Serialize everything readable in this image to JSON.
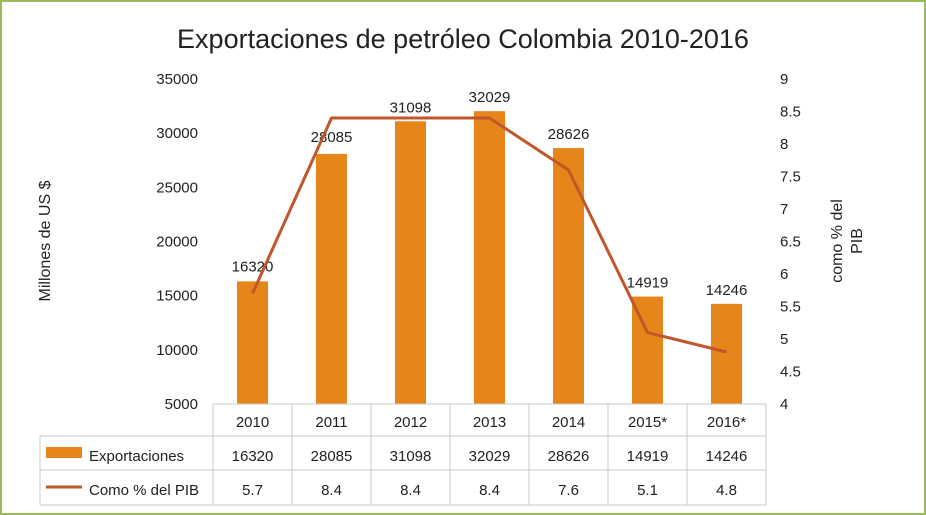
{
  "chart_data": {
    "type": "bar",
    "title": "Exportaciones de petróleo Colombia 2010-2016",
    "categories": [
      "2010",
      "2011",
      "2012",
      "2013",
      "2014",
      "2015*",
      "2016*"
    ],
    "series": [
      {
        "name": "Exportaciones",
        "chart_type": "bar",
        "axis": "left",
        "values": [
          16320,
          28085,
          31098,
          32029,
          28626,
          14919,
          14246
        ],
        "labels": [
          "16320",
          "28085",
          "31098",
          "32029",
          "28626",
          "14919",
          "14246"
        ],
        "color": "#e6861a"
      },
      {
        "name": "Como % del PIB",
        "chart_type": "line",
        "axis": "right",
        "values": [
          5.7,
          8.4,
          8.4,
          8.4,
          7.6,
          5.1,
          4.8
        ],
        "labels": [
          "5.7",
          "8.4",
          "8.4",
          "8.4",
          "7.6",
          "5.1",
          "4.8"
        ],
        "color": "#c0572b"
      }
    ],
    "ylabel": "Millones de US $",
    "ylim": [
      5000,
      35000
    ],
    "yticks": [
      "35000",
      "30000",
      "25000",
      "20000",
      "15000",
      "10000",
      "5000"
    ],
    "y2label": "como % del PIB",
    "y2label_lines": [
      "como % del",
      "PIB"
    ],
    "y2lim": [
      4,
      9
    ],
    "y2ticks": [
      "9",
      "8.5",
      "8",
      "7.5",
      "7",
      "6.5",
      "6",
      "5.5",
      "5",
      "4.5",
      "4"
    ],
    "data_table": true,
    "grid": false
  }
}
